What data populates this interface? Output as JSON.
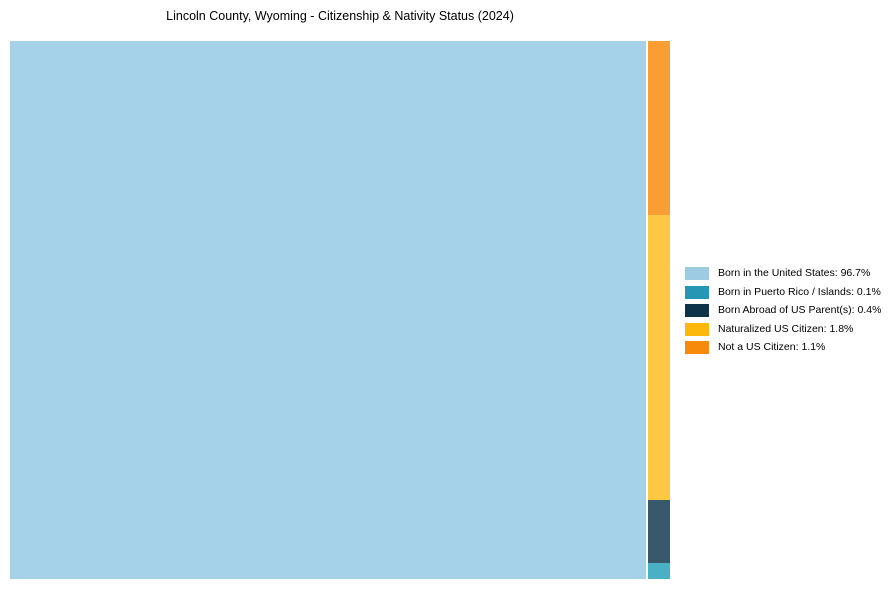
{
  "title": "Lincoln County, Wyoming - Citizenship & Nativity Status (2024)",
  "chart_data": {
    "type": "treemap",
    "title": "Lincoln County, Wyoming - Citizenship & Nativity Status (2024)",
    "unit": "%",
    "categories": [
      "Born in the United States",
      "Born in Puerto Rico / Islands",
      "Born Abroad of US Parent(s)",
      "Naturalized US Citizen",
      "Not a US Citizen"
    ],
    "values": [
      96.7,
      0.1,
      0.4,
      1.8,
      1.1
    ],
    "legend_position": "right",
    "legend_labels": [
      "Born in the United States: 96.7%",
      "Born in Puerto Rico / Islands: 0.1%",
      "Born Abroad of US Parent(s): 0.4%",
      "Naturalized US Citizen: 1.8%",
      "Not a US Citizen: 1.1%"
    ],
    "colors": {
      "fills": [
        "#A5D2E9",
        "#4AB0C5",
        "#38596C",
        "#FEC843",
        "#FA9D33"
      ],
      "swatches": [
        "#9CCBE3",
        "#2597B4",
        "#0D3349",
        "#FDB70D",
        "#F88A0B"
      ]
    }
  }
}
